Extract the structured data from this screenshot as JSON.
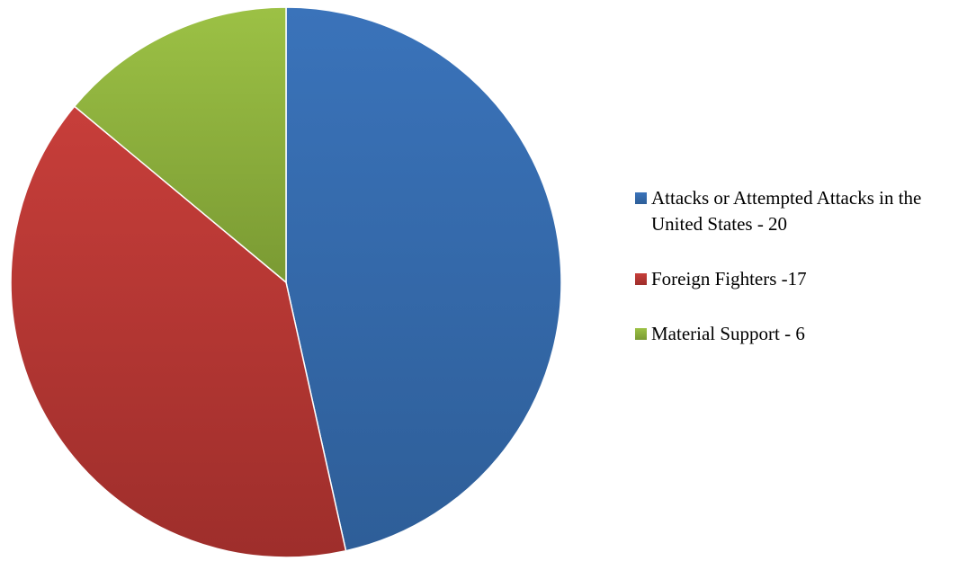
{
  "chart_data": {
    "type": "pie",
    "title": "",
    "slices": [
      {
        "label": "Attacks or Attempted Attacks in the United States - 20",
        "value": 20,
        "color": "#3A73BA",
        "color_dark": "#2E5E98"
      },
      {
        "label": "Foreign Fighters -17",
        "value": 17,
        "color": "#C73E3A",
        "color_dark": "#9E2E2B"
      },
      {
        "label": "Material Support - 6",
        "value": 6,
        "color": "#9CC145",
        "color_dark": "#7A9A33"
      }
    ],
    "legend_position": "right"
  }
}
